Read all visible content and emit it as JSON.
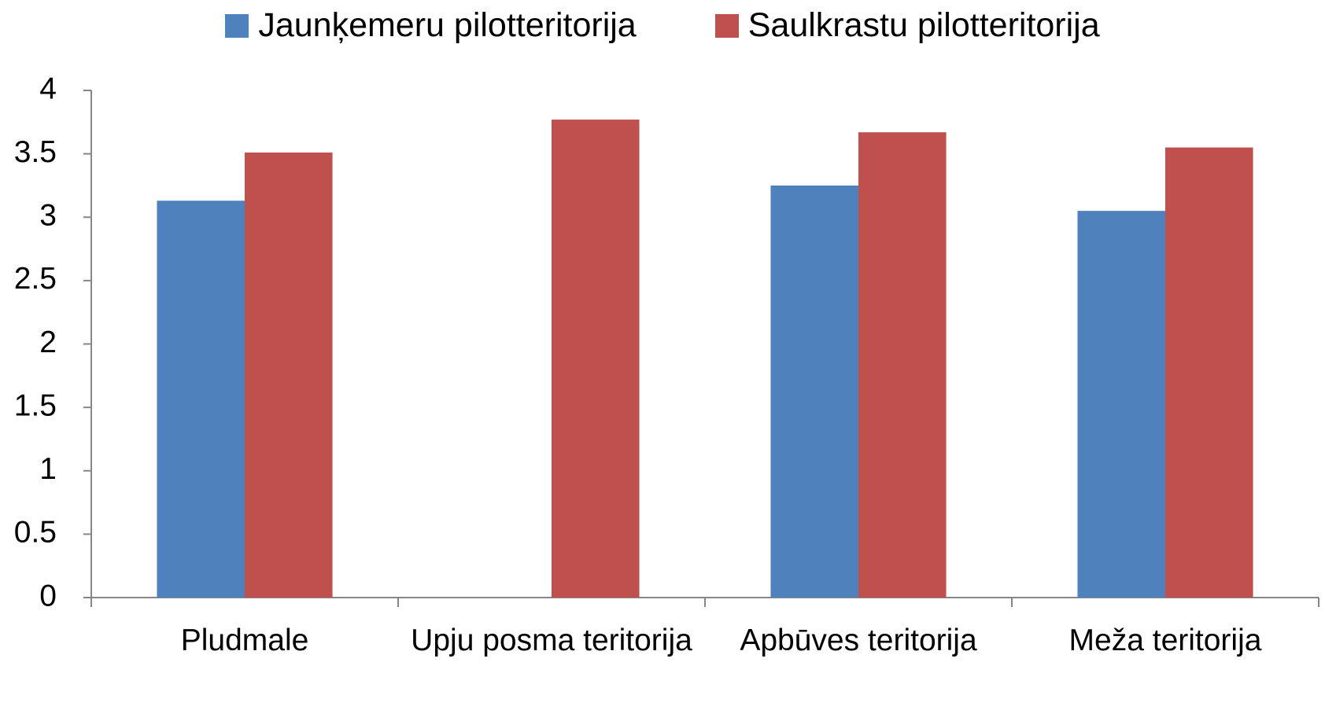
{
  "chart_data": {
    "type": "bar",
    "categories": [
      "Pludmale",
      "Upju posma teritorija",
      "Apbūves teritorija",
      "Meža teritorija"
    ],
    "series": [
      {
        "name": "Jaunķemeru pilotteritorija",
        "color": "#4f81bd",
        "values": [
          3.13,
          null,
          3.25,
          3.05
        ]
      },
      {
        "name": "Saulkrastu pilotteritorija",
        "color": "#c0504d",
        "values": [
          3.51,
          3.77,
          3.67,
          3.55
        ]
      }
    ],
    "ylim": [
      0,
      4
    ],
    "yticks": [
      0,
      0.5,
      1,
      1.5,
      2,
      2.5,
      3,
      3.5,
      4
    ],
    "grid": false,
    "legend": "top"
  }
}
